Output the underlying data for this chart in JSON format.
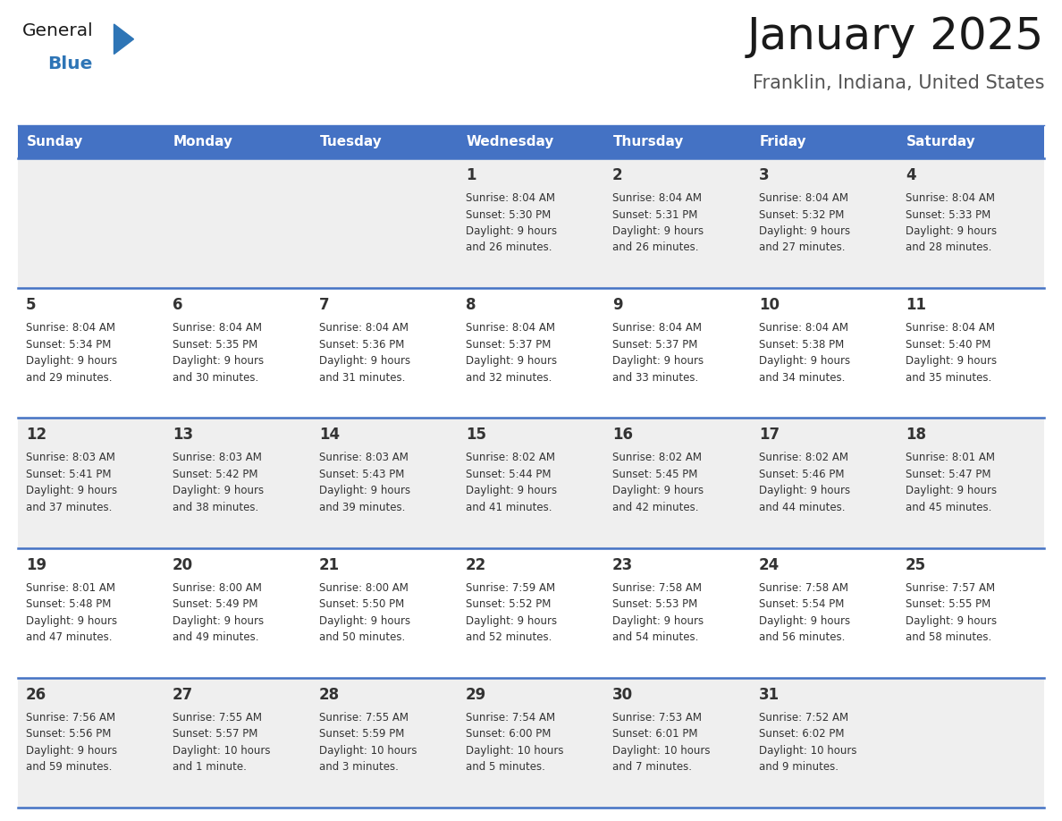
{
  "title": "January 2025",
  "subtitle": "Franklin, Indiana, United States",
  "header_bg": "#4472C4",
  "header_text_color": "#FFFFFF",
  "day_names": [
    "Sunday",
    "Monday",
    "Tuesday",
    "Wednesday",
    "Thursday",
    "Friday",
    "Saturday"
  ],
  "cell_bg_light": "#EFEFEF",
  "cell_bg_white": "#FFFFFF",
  "row_separator_color": "#4472C4",
  "text_color": "#333333",
  "day_number_color": "#333333",
  "calendar": [
    [
      {
        "day": null,
        "sunrise": null,
        "sunset": null,
        "daylight": null
      },
      {
        "day": null,
        "sunrise": null,
        "sunset": null,
        "daylight": null
      },
      {
        "day": null,
        "sunrise": null,
        "sunset": null,
        "daylight": null
      },
      {
        "day": 1,
        "sunrise": "8:04 AM",
        "sunset": "5:30 PM",
        "daylight": "9 hours\nand 26 minutes."
      },
      {
        "day": 2,
        "sunrise": "8:04 AM",
        "sunset": "5:31 PM",
        "daylight": "9 hours\nand 26 minutes."
      },
      {
        "day": 3,
        "sunrise": "8:04 AM",
        "sunset": "5:32 PM",
        "daylight": "9 hours\nand 27 minutes."
      },
      {
        "day": 4,
        "sunrise": "8:04 AM",
        "sunset": "5:33 PM",
        "daylight": "9 hours\nand 28 minutes."
      }
    ],
    [
      {
        "day": 5,
        "sunrise": "8:04 AM",
        "sunset": "5:34 PM",
        "daylight": "9 hours\nand 29 minutes."
      },
      {
        "day": 6,
        "sunrise": "8:04 AM",
        "sunset": "5:35 PM",
        "daylight": "9 hours\nand 30 minutes."
      },
      {
        "day": 7,
        "sunrise": "8:04 AM",
        "sunset": "5:36 PM",
        "daylight": "9 hours\nand 31 minutes."
      },
      {
        "day": 8,
        "sunrise": "8:04 AM",
        "sunset": "5:37 PM",
        "daylight": "9 hours\nand 32 minutes."
      },
      {
        "day": 9,
        "sunrise": "8:04 AM",
        "sunset": "5:37 PM",
        "daylight": "9 hours\nand 33 minutes."
      },
      {
        "day": 10,
        "sunrise": "8:04 AM",
        "sunset": "5:38 PM",
        "daylight": "9 hours\nand 34 minutes."
      },
      {
        "day": 11,
        "sunrise": "8:04 AM",
        "sunset": "5:40 PM",
        "daylight": "9 hours\nand 35 minutes."
      }
    ],
    [
      {
        "day": 12,
        "sunrise": "8:03 AM",
        "sunset": "5:41 PM",
        "daylight": "9 hours\nand 37 minutes."
      },
      {
        "day": 13,
        "sunrise": "8:03 AM",
        "sunset": "5:42 PM",
        "daylight": "9 hours\nand 38 minutes."
      },
      {
        "day": 14,
        "sunrise": "8:03 AM",
        "sunset": "5:43 PM",
        "daylight": "9 hours\nand 39 minutes."
      },
      {
        "day": 15,
        "sunrise": "8:02 AM",
        "sunset": "5:44 PM",
        "daylight": "9 hours\nand 41 minutes."
      },
      {
        "day": 16,
        "sunrise": "8:02 AM",
        "sunset": "5:45 PM",
        "daylight": "9 hours\nand 42 minutes."
      },
      {
        "day": 17,
        "sunrise": "8:02 AM",
        "sunset": "5:46 PM",
        "daylight": "9 hours\nand 44 minutes."
      },
      {
        "day": 18,
        "sunrise": "8:01 AM",
        "sunset": "5:47 PM",
        "daylight": "9 hours\nand 45 minutes."
      }
    ],
    [
      {
        "day": 19,
        "sunrise": "8:01 AM",
        "sunset": "5:48 PM",
        "daylight": "9 hours\nand 47 minutes."
      },
      {
        "day": 20,
        "sunrise": "8:00 AM",
        "sunset": "5:49 PM",
        "daylight": "9 hours\nand 49 minutes."
      },
      {
        "day": 21,
        "sunrise": "8:00 AM",
        "sunset": "5:50 PM",
        "daylight": "9 hours\nand 50 minutes."
      },
      {
        "day": 22,
        "sunrise": "7:59 AM",
        "sunset": "5:52 PM",
        "daylight": "9 hours\nand 52 minutes."
      },
      {
        "day": 23,
        "sunrise": "7:58 AM",
        "sunset": "5:53 PM",
        "daylight": "9 hours\nand 54 minutes."
      },
      {
        "day": 24,
        "sunrise": "7:58 AM",
        "sunset": "5:54 PM",
        "daylight": "9 hours\nand 56 minutes."
      },
      {
        "day": 25,
        "sunrise": "7:57 AM",
        "sunset": "5:55 PM",
        "daylight": "9 hours\nand 58 minutes."
      }
    ],
    [
      {
        "day": 26,
        "sunrise": "7:56 AM",
        "sunset": "5:56 PM",
        "daylight": "9 hours\nand 59 minutes."
      },
      {
        "day": 27,
        "sunrise": "7:55 AM",
        "sunset": "5:57 PM",
        "daylight": "10 hours\nand 1 minute."
      },
      {
        "day": 28,
        "sunrise": "7:55 AM",
        "sunset": "5:59 PM",
        "daylight": "10 hours\nand 3 minutes."
      },
      {
        "day": 29,
        "sunrise": "7:54 AM",
        "sunset": "6:00 PM",
        "daylight": "10 hours\nand 5 minutes."
      },
      {
        "day": 30,
        "sunrise": "7:53 AM",
        "sunset": "6:01 PM",
        "daylight": "10 hours\nand 7 minutes."
      },
      {
        "day": 31,
        "sunrise": "7:52 AM",
        "sunset": "6:02 PM",
        "daylight": "10 hours\nand 9 minutes."
      },
      {
        "day": null,
        "sunrise": null,
        "sunset": null,
        "daylight": null
      }
    ]
  ],
  "logo_general_color": "#1a1a1a",
  "logo_blue_color": "#2E75B6",
  "logo_triangle_color": "#2E75B6"
}
